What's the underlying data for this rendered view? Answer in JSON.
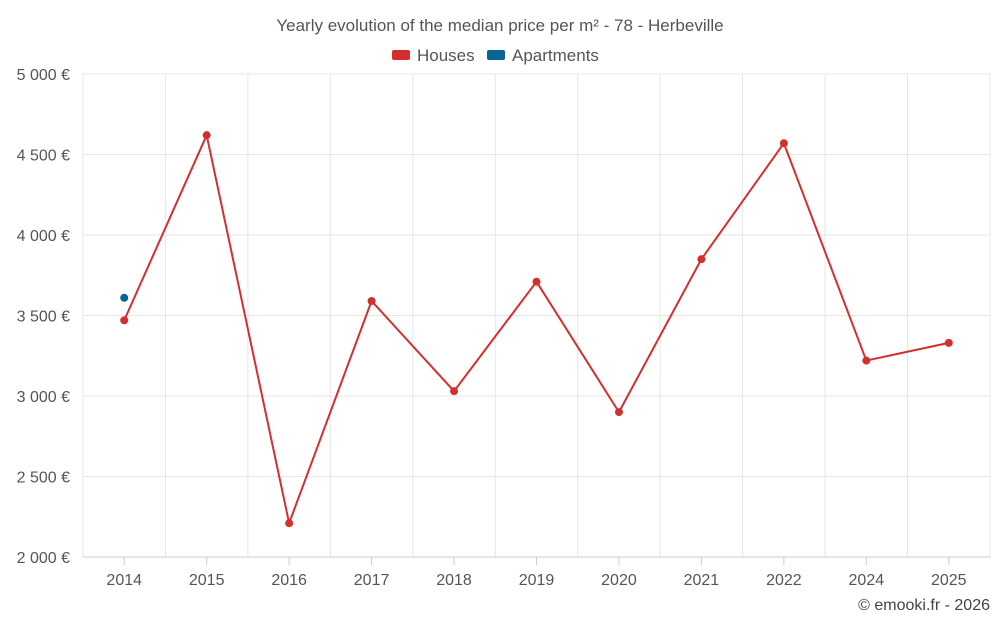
{
  "chart_data": {
    "type": "line",
    "title": "Yearly evolution of the median price per m² - 78 - Herbeville",
    "categories": [
      "2014",
      "2015",
      "2016",
      "2017",
      "2018",
      "2019",
      "2020",
      "2021",
      "2022",
      "2024",
      "2025"
    ],
    "series": [
      {
        "name": "Houses",
        "color": "#d32f2f",
        "values": [
          3470,
          4620,
          2210,
          3590,
          3030,
          3710,
          2900,
          3850,
          4570,
          3220,
          3330
        ]
      },
      {
        "name": "Apartments",
        "color": "#0a6496",
        "values": [
          3610,
          null,
          null,
          null,
          null,
          null,
          null,
          null,
          null,
          null,
          null
        ]
      }
    ],
    "ylim": [
      2000,
      5000
    ],
    "yticks": [
      2000,
      2500,
      3000,
      3500,
      4000,
      4500,
      5000
    ],
    "ytick_labels": [
      "2 000 €",
      "2 500 €",
      "3 000 €",
      "3 500 €",
      "4 000 €",
      "4 500 €",
      "5 000 €"
    ],
    "xlabel": "",
    "ylabel": "",
    "grid": true,
    "legend_position": "top-center"
  },
  "credit": "© emooki.fr - 2026"
}
